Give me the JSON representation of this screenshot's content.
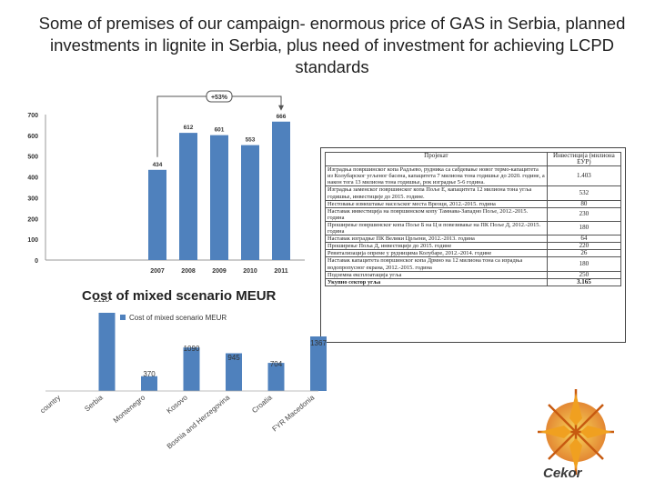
{
  "slide": {
    "title": "Some of premises of our campaign- enormous  price of GAS in Serbia, planned investments in lignite in Serbia, plus need of investment for achieving LCPD standards"
  },
  "chart_data": [
    {
      "type": "bar",
      "title": "",
      "annotation": "+53%",
      "categories": [
        "2007",
        "2008",
        "2009",
        "2010",
        "2011"
      ],
      "values": [
        434,
        612,
        601,
        553,
        666
      ],
      "ylim": [
        0,
        700
      ],
      "yticks": [
        0,
        100,
        200,
        300,
        400,
        500,
        600,
        700
      ],
      "grid": false,
      "color": "#4f81bd"
    },
    {
      "type": "bar",
      "title": "Cost of mixed scenario MEUR",
      "categories": [
        "country",
        "Serbia",
        "Montenegro",
        "Kosovo",
        "Bosnia and Herzegovina",
        "Croatia",
        "FYR Macedonia"
      ],
      "series": [
        {
          "name": "Cost of mixed scenario MEUR",
          "values": [
            null,
            2113,
            370,
            1090,
            945,
            704,
            1367
          ]
        }
      ],
      "data_labels": [
        "",
        "2113",
        "370",
        "1090",
        "945",
        "704",
        "1367"
      ],
      "legend": "top-left",
      "color": "#4f81bd"
    }
  ],
  "table": {
    "headers": [
      "Пројекат",
      "Инвестиција (милиона ЕУР)"
    ],
    "rows": [
      [
        "Изградња површинског копа Радљево, рудника са сабдевање новог термо-капацитета из Колубарског угљеног басена, капацитета 7 милиона тона годишње до 2020. године, а након тога 13 милиона тона годишње, рок изградње 5-6 година.",
        "1.403"
      ],
      [
        "Изградња заменског површинског копа Поље Е, капацитета 12 милиона тона угља годишње, инвестиције до 2015. године.",
        "532"
      ],
      [
        "Нестовање измештање насељског места Вреоци, 2012.-2015. година",
        "80"
      ],
      [
        "Наставак инвестиција на површинском копу Тамнава-Западно Поље, 2012.-2015. година",
        "230"
      ],
      [
        "Проширење површинског копа Поље Б на Ц и повезивање на ПК Поље Д, 2012.-2015. година",
        "180"
      ],
      [
        "Наставак изградње ПК Велики Црљени, 2012.-2013. година",
        "64"
      ],
      [
        "Проширење Поља Д, инвестиције до 2015. године",
        "220"
      ],
      [
        "Ревитализација опреме у рудницима Колубаре, 2012.-2014. године",
        "26"
      ],
      [
        "Наставак капацитета површинског копа Дрмно на 12 милиона тона са израдња водопропусног екрана, 2012.-2015. година",
        "180"
      ],
      [
        "Подземна експлоатација угља",
        "250"
      ],
      [
        "Укупно сектор угља",
        "3.165"
      ]
    ]
  },
  "logo": {
    "text": "Cekor"
  }
}
